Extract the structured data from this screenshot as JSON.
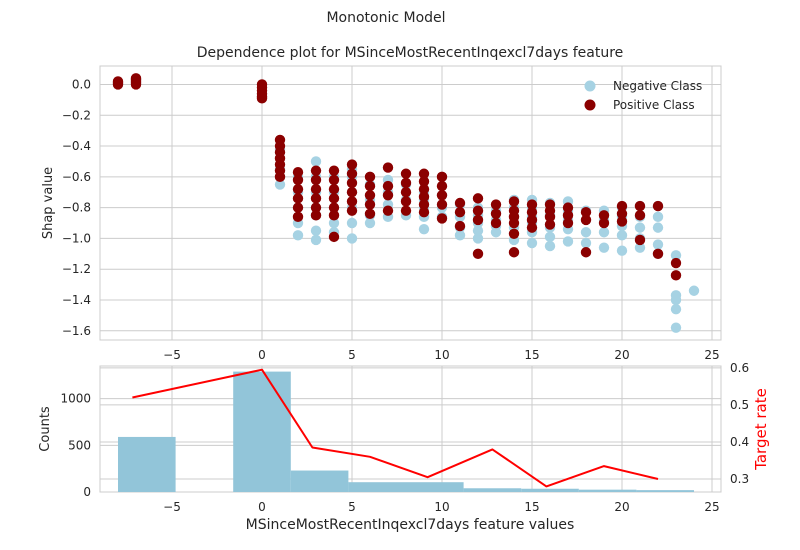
{
  "figure": {
    "suptitle": "Monotonic Model",
    "colors": {
      "negative": "#a6d2e3",
      "positive": "#8b0000",
      "hist": "#92c5d9",
      "target_line": "#ff0000",
      "grid": "#cccccc",
      "axis_text": "#262626"
    }
  },
  "chart_data": [
    {
      "type": "scatter",
      "title": "Dependence plot for MSinceMostRecentInqexcl7days feature",
      "xlabel": "",
      "ylabel": "Shap value",
      "xlim": [
        -9,
        25.5
      ],
      "ylim": [
        -1.66,
        0.12
      ],
      "xticks": [
        -5,
        0,
        5,
        10,
        15,
        20,
        25
      ],
      "xtick_labels": [
        "−5",
        "0",
        "5",
        "10",
        "15",
        "20",
        "25"
      ],
      "yticks": [
        0.0,
        -0.2,
        -0.4,
        -0.6,
        -0.8,
        -1.0,
        -1.2,
        -1.4,
        -1.6
      ],
      "ytick_labels": [
        "0.0",
        "−0.2",
        "−0.4",
        "−0.6",
        "−0.8",
        "−1.0",
        "−1.2",
        "−1.4",
        "−1.6"
      ],
      "grid": true,
      "legend_position": "top-right",
      "series": [
        {
          "name": "Negative Class",
          "color": "#a6d2e3",
          "points": [
            [
              -8,
              0.0
            ],
            [
              -8,
              0.01
            ],
            [
              -7,
              0.01
            ],
            [
              -7,
              0.03
            ],
            [
              0,
              -0.02
            ],
            [
              0,
              -0.06
            ],
            [
              0,
              -0.08
            ],
            [
              1,
              -0.42
            ],
            [
              1,
              -0.55
            ],
            [
              1,
              -0.6
            ],
            [
              1,
              -0.65
            ],
            [
              2,
              -0.6
            ],
            [
              2,
              -0.7
            ],
            [
              2,
              -0.8
            ],
            [
              2,
              -0.9
            ],
            [
              2,
              -0.98
            ],
            [
              3,
              -0.5
            ],
            [
              3,
              -0.6
            ],
            [
              3,
              -0.7
            ],
            [
              3,
              -0.8
            ],
            [
              3,
              -0.85
            ],
            [
              3,
              -0.95
            ],
            [
              3,
              -1.01
            ],
            [
              4,
              -0.6
            ],
            [
              4,
              -0.7
            ],
            [
              4,
              -0.8
            ],
            [
              4,
              -0.9
            ],
            [
              4,
              -0.96
            ],
            [
              5,
              -0.55
            ],
            [
              5,
              -0.6
            ],
            [
              5,
              -0.7
            ],
            [
              5,
              -0.8
            ],
            [
              5,
              -0.9
            ],
            [
              5,
              -1.0
            ],
            [
              6,
              -0.65
            ],
            [
              6,
              -0.75
            ],
            [
              6,
              -0.85
            ],
            [
              6,
              -0.9
            ],
            [
              7,
              -0.62
            ],
            [
              7,
              -0.7
            ],
            [
              7,
              -0.78
            ],
            [
              7,
              -0.86
            ],
            [
              8,
              -0.65
            ],
            [
              8,
              -0.75
            ],
            [
              8,
              -0.85
            ],
            [
              9,
              -0.7
            ],
            [
              9,
              -0.75
            ],
            [
              9,
              -0.8
            ],
            [
              9,
              -0.86
            ],
            [
              9,
              -0.94
            ],
            [
              10,
              -0.72
            ],
            [
              10,
              -0.8
            ],
            [
              10,
              -0.86
            ],
            [
              11,
              -0.78
            ],
            [
              11,
              -0.86
            ],
            [
              11,
              -0.93
            ],
            [
              11,
              -0.98
            ],
            [
              12,
              -0.8
            ],
            [
              12,
              -0.85
            ],
            [
              12,
              -0.9
            ],
            [
              12,
              -0.95
            ],
            [
              12,
              -1.0
            ],
            [
              13,
              -0.82
            ],
            [
              13,
              -0.88
            ],
            [
              13,
              -0.92
            ],
            [
              13,
              -0.96
            ],
            [
              14,
              -0.75
            ],
            [
              14,
              -0.8
            ],
            [
              14,
              -0.86
            ],
            [
              14,
              -0.93
            ],
            [
              14,
              -1.01
            ],
            [
              15,
              -0.75
            ],
            [
              15,
              -0.8
            ],
            [
              15,
              -0.86
            ],
            [
              15,
              -0.9
            ],
            [
              15,
              -0.96
            ],
            [
              15,
              -1.03
            ],
            [
              16,
              -0.77
            ],
            [
              16,
              -0.85
            ],
            [
              16,
              -0.93
            ],
            [
              16,
              -0.99
            ],
            [
              16,
              -1.05
            ],
            [
              17,
              -0.76
            ],
            [
              17,
              -0.82
            ],
            [
              17,
              -0.88
            ],
            [
              17,
              -0.94
            ],
            [
              17,
              -1.02
            ],
            [
              18,
              -0.82
            ],
            [
              18,
              -0.88
            ],
            [
              18,
              -0.96
            ],
            [
              18,
              -1.03
            ],
            [
              19,
              -0.82
            ],
            [
              19,
              -0.88
            ],
            [
              19,
              -0.96
            ],
            [
              19,
              -1.06
            ],
            [
              20,
              -0.8
            ],
            [
              20,
              -0.86
            ],
            [
              20,
              -0.92
            ],
            [
              20,
              -0.98
            ],
            [
              20,
              -1.08
            ],
            [
              21,
              -0.79
            ],
            [
              21,
              -0.86
            ],
            [
              21,
              -0.93
            ],
            [
              21,
              -1.0
            ],
            [
              21,
              -1.06
            ],
            [
              22,
              -0.79
            ],
            [
              22,
              -0.86
            ],
            [
              22,
              -0.93
            ],
            [
              22,
              -1.04
            ],
            [
              22,
              -1.1
            ],
            [
              23,
              -1.11
            ],
            [
              23,
              -1.37
            ],
            [
              23,
              -1.4
            ],
            [
              23,
              -1.46
            ],
            [
              23,
              -1.58
            ],
            [
              24,
              -1.34
            ]
          ]
        },
        {
          "name": "Positive Class",
          "color": "#8b0000",
          "points": [
            [
              -8,
              0.0
            ],
            [
              -8,
              0.01
            ],
            [
              -8,
              0.02
            ],
            [
              -7,
              0.0
            ],
            [
              -7,
              0.01
            ],
            [
              -7,
              0.02
            ],
            [
              -7,
              0.03
            ],
            [
              -7,
              0.04
            ],
            [
              0,
              0.0
            ],
            [
              0,
              -0.02
            ],
            [
              0,
              -0.04
            ],
            [
              0,
              -0.06
            ],
            [
              0,
              -0.08
            ],
            [
              0,
              -0.09
            ],
            [
              1,
              -0.36
            ],
            [
              1,
              -0.4
            ],
            [
              1,
              -0.44
            ],
            [
              1,
              -0.48
            ],
            [
              1,
              -0.52
            ],
            [
              1,
              -0.56
            ],
            [
              1,
              -0.6
            ],
            [
              2,
              -0.57
            ],
            [
              2,
              -0.62
            ],
            [
              2,
              -0.68
            ],
            [
              2,
              -0.74
            ],
            [
              2,
              -0.8
            ],
            [
              2,
              -0.86
            ],
            [
              3,
              -0.56
            ],
            [
              3,
              -0.62
            ],
            [
              3,
              -0.68
            ],
            [
              3,
              -0.74
            ],
            [
              3,
              -0.8
            ],
            [
              3,
              -0.85
            ],
            [
              4,
              -0.56
            ],
            [
              4,
              -0.62
            ],
            [
              4,
              -0.68
            ],
            [
              4,
              -0.74
            ],
            [
              4,
              -0.8
            ],
            [
              4,
              -0.85
            ],
            [
              4,
              -0.99
            ],
            [
              5,
              -0.52
            ],
            [
              5,
              -0.58
            ],
            [
              5,
              -0.64
            ],
            [
              5,
              -0.7
            ],
            [
              5,
              -0.76
            ],
            [
              5,
              -0.82
            ],
            [
              6,
              -0.6
            ],
            [
              6,
              -0.66
            ],
            [
              6,
              -0.72
            ],
            [
              6,
              -0.78
            ],
            [
              6,
              -0.84
            ],
            [
              7,
              -0.54
            ],
            [
              7,
              -0.66
            ],
            [
              7,
              -0.72
            ],
            [
              7,
              -0.82
            ],
            [
              8,
              -0.58
            ],
            [
              8,
              -0.64
            ],
            [
              8,
              -0.7
            ],
            [
              8,
              -0.76
            ],
            [
              8,
              -0.82
            ],
            [
              9,
              -0.58
            ],
            [
              9,
              -0.63
            ],
            [
              9,
              -0.68
            ],
            [
              9,
              -0.73
            ],
            [
              9,
              -0.78
            ],
            [
              9,
              -0.83
            ],
            [
              10,
              -0.6
            ],
            [
              10,
              -0.66
            ],
            [
              10,
              -0.72
            ],
            [
              10,
              -0.78
            ],
            [
              10,
              -0.87
            ],
            [
              11,
              -0.77
            ],
            [
              11,
              -0.83
            ],
            [
              11,
              -0.92
            ],
            [
              12,
              -0.74
            ],
            [
              12,
              -0.82
            ],
            [
              12,
              -0.88
            ],
            [
              12,
              -1.1
            ],
            [
              13,
              -0.78
            ],
            [
              13,
              -0.84
            ],
            [
              13,
              -0.9
            ],
            [
              14,
              -0.76
            ],
            [
              14,
              -0.82
            ],
            [
              14,
              -0.86
            ],
            [
              14,
              -0.9
            ],
            [
              14,
              -0.97
            ],
            [
              14,
              -1.09
            ],
            [
              15,
              -0.78
            ],
            [
              15,
              -0.83
            ],
            [
              15,
              -0.88
            ],
            [
              15,
              -0.93
            ],
            [
              16,
              -0.78
            ],
            [
              16,
              -0.82
            ],
            [
              16,
              -0.86
            ],
            [
              16,
              -0.91
            ],
            [
              17,
              -0.8
            ],
            [
              17,
              -0.85
            ],
            [
              17,
              -0.9
            ],
            [
              18,
              -0.83
            ],
            [
              18,
              -0.88
            ],
            [
              18,
              -1.09
            ],
            [
              19,
              -0.85
            ],
            [
              19,
              -0.9
            ],
            [
              20,
              -0.79
            ],
            [
              20,
              -0.84
            ],
            [
              20,
              -0.89
            ],
            [
              21,
              -0.79
            ],
            [
              21,
              -0.85
            ],
            [
              21,
              -1.01
            ],
            [
              22,
              -0.79
            ],
            [
              22,
              -1.1
            ],
            [
              23,
              -1.16
            ],
            [
              23,
              -1.24
            ]
          ]
        }
      ]
    },
    {
      "type": "bar",
      "title": "",
      "xlabel": "MSinceMostRecentInqexcl7days feature values",
      "ylabel": "Counts",
      "y2label": "Target rate",
      "xlim": [
        -9,
        25.5
      ],
      "ylim": [
        0,
        1350
      ],
      "y2lim": [
        0.265,
        0.605
      ],
      "xticks": [
        -5,
        0,
        5,
        10,
        15,
        20,
        25
      ],
      "xtick_labels": [
        "−5",
        "0",
        "5",
        "10",
        "15",
        "20",
        "25"
      ],
      "yticks": [
        0,
        500,
        1000
      ],
      "ytick_labels": [
        "0",
        "500",
        "1000"
      ],
      "y2ticks": [
        0.3,
        0.4,
        0.5,
        0.6
      ],
      "y2tick_labels": [
        "0.3",
        "0.4",
        "0.5",
        "0.6"
      ],
      "grid": true,
      "bins": [
        {
          "x0": -8.0,
          "x1": -4.8,
          "count": 590
        },
        {
          "x0": -4.8,
          "x1": -1.6,
          "count": 0
        },
        {
          "x0": -1.6,
          "x1": 1.6,
          "count": 1290
        },
        {
          "x0": 1.6,
          "x1": 4.8,
          "count": 230
        },
        {
          "x0": 4.8,
          "x1": 8.0,
          "count": 105
        },
        {
          "x0": 8.0,
          "x1": 11.2,
          "count": 105
        },
        {
          "x0": 11.2,
          "x1": 14.4,
          "count": 40
        },
        {
          "x0": 14.4,
          "x1": 17.6,
          "count": 35
        },
        {
          "x0": 17.6,
          "x1": 20.8,
          "count": 25
        },
        {
          "x0": 20.8,
          "x1": 24.0,
          "count": 20
        }
      ],
      "target_rate": {
        "x": [
          -7.2,
          0.0,
          2.8,
          6.0,
          9.2,
          12.8,
          15.8,
          19.0,
          22.0
        ],
        "y": [
          0.52,
          0.595,
          0.385,
          0.36,
          0.305,
          0.38,
          0.28,
          0.335,
          0.3
        ]
      }
    }
  ]
}
